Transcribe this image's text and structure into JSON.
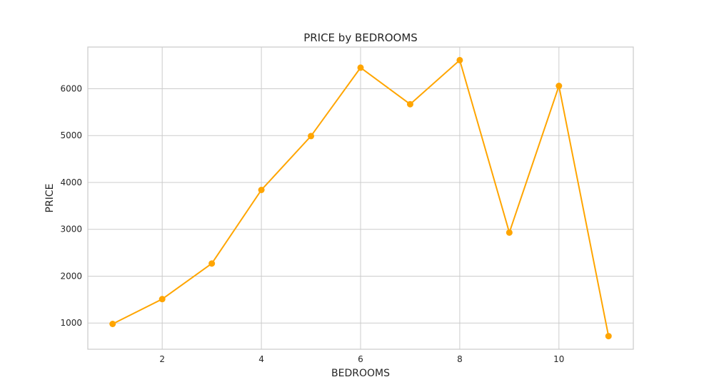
{
  "chart_data": {
    "type": "line",
    "title": "PRICE by BEDROOMS",
    "xlabel": "BEDROOMS",
    "ylabel": "PRICE",
    "x": [
      1,
      2,
      3,
      4,
      5,
      6,
      7,
      8,
      9,
      10,
      11
    ],
    "series": [
      {
        "values": [
          980,
          1510,
          2270,
          3840,
          4990,
          6450,
          5670,
          6610,
          2930,
          6060,
          720
        ],
        "color": "#ffa500"
      }
    ],
    "xlim": [
      0.5,
      11.5
    ],
    "ylim": [
      440,
      6890
    ],
    "xticks": [
      2,
      4,
      6,
      8,
      10
    ],
    "yticks": [
      1000,
      2000,
      3000,
      4000,
      5000,
      6000
    ],
    "grid": true,
    "legend": "none"
  }
}
